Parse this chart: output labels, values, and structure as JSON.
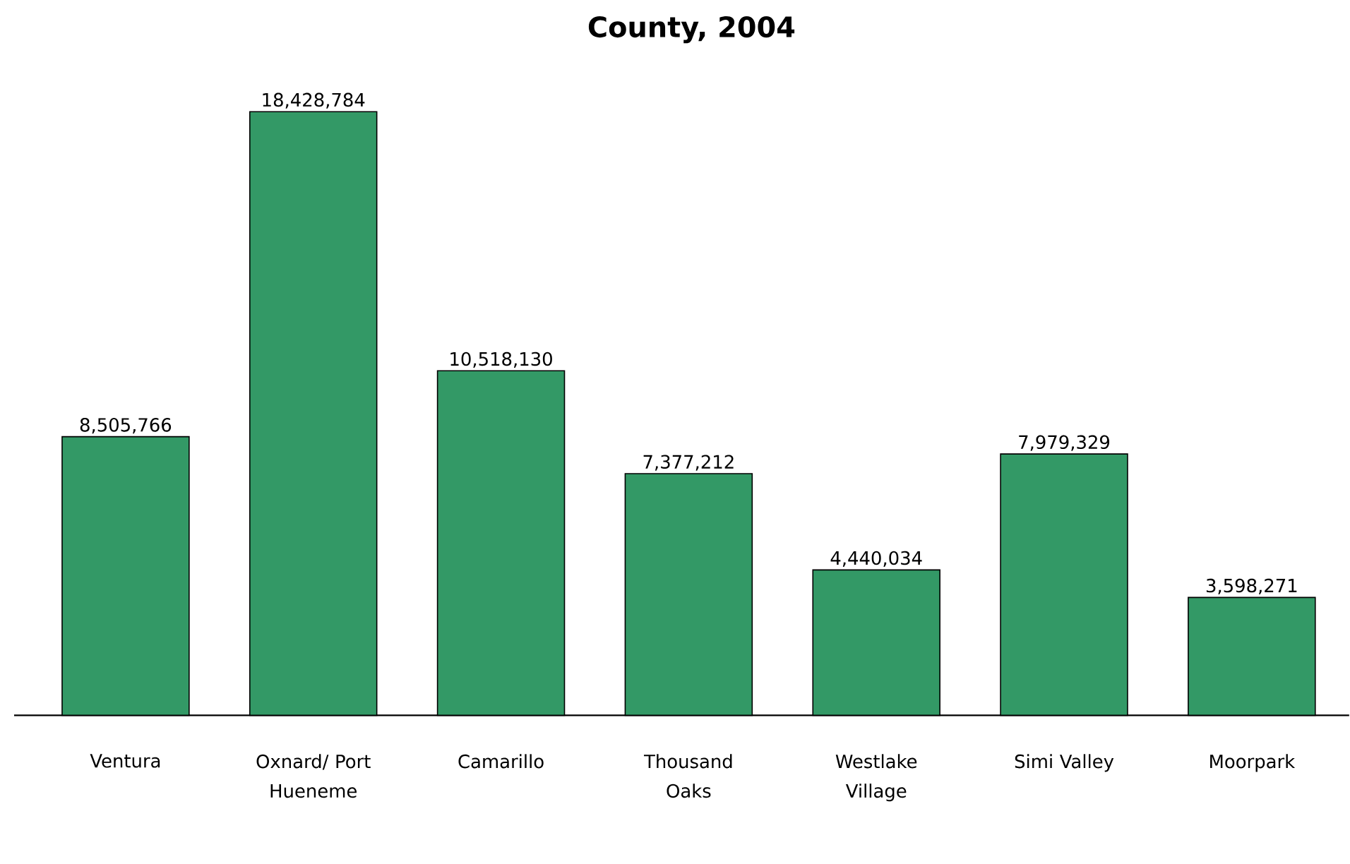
{
  "chart_data": {
    "type": "bar",
    "title": "County, 2004",
    "categories": [
      "Ventura",
      "Oxnard/ Port Hueneme",
      "Camarillo",
      "Thousand Oaks",
      "Westlake Village",
      "Simi Valley",
      "Moorpark"
    ],
    "values": [
      8505766,
      18428784,
      10518130,
      7377212,
      4440034,
      7979329,
      3598271
    ],
    "value_labels": [
      "8,505,766",
      "18,428,784",
      "10,518,130",
      "7,377,212",
      "4,440,034",
      "7,979,329",
      "3,598,271"
    ],
    "color": "#339966",
    "tick_labels": "x"
  }
}
